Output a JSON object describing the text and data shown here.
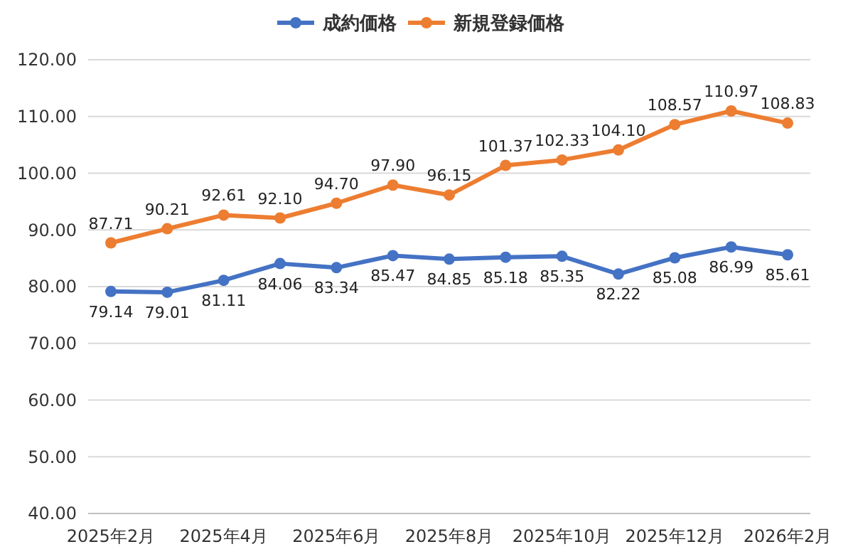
{
  "chart_data": {
    "type": "line",
    "categories": [
      "2025年2月",
      null,
      "2025年4月",
      null,
      "2025年6月",
      null,
      "2025年8月",
      null,
      "2025年10月",
      null,
      "2025年12月",
      null,
      "2026年2月"
    ],
    "series": [
      {
        "name": "成約価格",
        "color": "#4472c4",
        "values": [
          79.14,
          79.01,
          81.11,
          84.06,
          83.34,
          85.47,
          84.85,
          85.18,
          85.35,
          82.22,
          85.08,
          86.99,
          85.61
        ],
        "value_labels": [
          "79.14",
          "79.01",
          "81.11",
          "84.06",
          "83.34",
          "85.47",
          "84.85",
          "85.18",
          "85.35",
          "82.22",
          "85.08",
          "86.99",
          "85.61"
        ]
      },
      {
        "name": "新規登録価格",
        "color": "#ed7d31",
        "values": [
          87.71,
          90.21,
          92.61,
          92.1,
          94.7,
          97.9,
          96.15,
          101.37,
          102.33,
          104.1,
          108.57,
          110.97,
          108.83
        ],
        "value_labels": [
          "87.71",
          "90.21",
          "92.61",
          "92.10",
          "94.70",
          "97.90",
          "96.15",
          "101.37",
          "102.33",
          "104.10",
          "108.57",
          "110.97",
          "108.83"
        ]
      }
    ],
    "ylim": [
      40,
      120
    ],
    "yticks": [
      {
        "value": 40,
        "label": "40.00"
      },
      {
        "value": 50,
        "label": "50.00"
      },
      {
        "value": 60,
        "label": "60.00"
      },
      {
        "value": 70,
        "label": "70.00"
      },
      {
        "value": 80,
        "label": "80.00"
      },
      {
        "value": 90,
        "label": "90.00"
      },
      {
        "value": 100,
        "label": "100.00"
      },
      {
        "value": 110,
        "label": "110.00"
      },
      {
        "value": 120,
        "label": "120.00"
      }
    ],
    "grid": "y",
    "legend": "top",
    "marker": "circle",
    "line_style": "solid"
  }
}
